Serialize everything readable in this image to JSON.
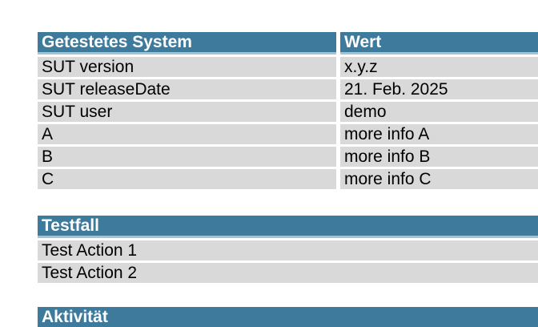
{
  "colors": {
    "page_bg": "#ffffff",
    "header_bg": "#3e7a9c",
    "header_fg": "#ffffff",
    "header_border": "#a6c1d0",
    "row_bg": "#d9d9d9",
    "row_fg": "#000000"
  },
  "system_table": {
    "headers": {
      "key": "Getestetes System",
      "value": "Wert"
    },
    "rows": [
      {
        "key": "SUT version",
        "value": "x.y.z"
      },
      {
        "key": "SUT releaseDate",
        "value": "21. Feb. 2025"
      },
      {
        "key": "SUT user",
        "value": "demo"
      },
      {
        "key": "A",
        "value": "more info A"
      },
      {
        "key": "B",
        "value": "more info B"
      },
      {
        "key": "C",
        "value": "more info C"
      }
    ]
  },
  "testcase_table": {
    "header": "Testfall",
    "rows": [
      "Test Action 1",
      "Test Action 2"
    ]
  },
  "activity_table": {
    "header": "Aktivität"
  }
}
